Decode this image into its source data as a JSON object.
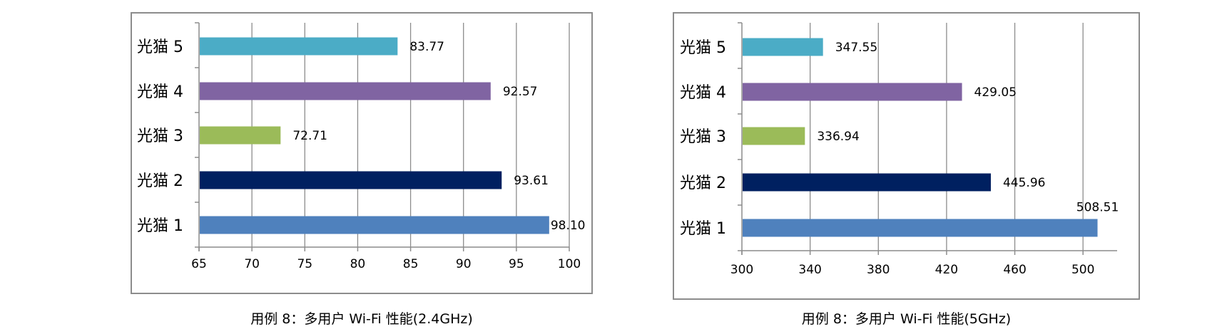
{
  "chart_data": [
    {
      "type": "bar",
      "orientation": "horizontal",
      "title": "",
      "caption": "用例 8：多用户 Wi-Fi 性能(2.4GHz)",
      "categories": [
        "光猫 1",
        "光猫 2",
        "光猫 3",
        "光猫 4",
        "光猫 5"
      ],
      "values": [
        98.1,
        93.61,
        72.71,
        92.57,
        83.77
      ],
      "value_labels": [
        "98.10",
        "93.61",
        "72.71",
        "92.57",
        "83.77"
      ],
      "colors": [
        "#4f81bd",
        "#002060",
        "#9bbb59",
        "#8064a2",
        "#4bacc6"
      ],
      "xlim": [
        65,
        100
      ],
      "xticks": [
        "65",
        "70",
        "75",
        "80",
        "85",
        "90",
        "95",
        "100"
      ],
      "grid": true,
      "legend": "none"
    },
    {
      "type": "bar",
      "orientation": "horizontal",
      "title": "",
      "caption": "用例 8：多用户 Wi-Fi 性能(5GHz)",
      "categories": [
        "光猫 1",
        "光猫 2",
        "光猫 3",
        "光猫 4",
        "光猫 5"
      ],
      "values": [
        508.51,
        445.96,
        336.94,
        429.05,
        347.55
      ],
      "value_labels": [
        "508.51",
        "445.96",
        "336.94",
        "429.05",
        "347.55"
      ],
      "colors": [
        "#4f81bd",
        "#002060",
        "#9bbb59",
        "#8064a2",
        "#4bacc6"
      ],
      "xlim": [
        300,
        520
      ],
      "xticks": [
        "300",
        "340",
        "380",
        "420",
        "460",
        "500"
      ],
      "grid": true,
      "legend": "none"
    }
  ]
}
